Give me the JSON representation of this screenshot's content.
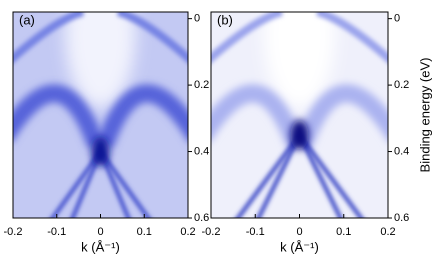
{
  "chart_data": [
    {
      "type": "image",
      "panel_label": "(a)",
      "xlabel": "k (Å⁻¹)",
      "xlim": [
        -0.2,
        0.2
      ],
      "xticks": [
        -0.2,
        -0.1,
        0,
        0.1,
        0.2
      ],
      "ylim": [
        -0.02,
        0.6
      ],
      "yticks": [
        0,
        0.2,
        0.4,
        0.6
      ]
    },
    {
      "type": "image",
      "panel_label": "(b)",
      "xlabel": "k (Å⁻¹)",
      "ylabel": "Binding energy (eV)",
      "xlim": [
        -0.2,
        0.2
      ],
      "xticks": [
        -0.2,
        -0.1,
        0,
        0.1,
        0.2
      ],
      "ylim": [
        -0.02,
        0.6
      ],
      "yticks": [
        0,
        0.2,
        0.4,
        0.6
      ]
    }
  ]
}
